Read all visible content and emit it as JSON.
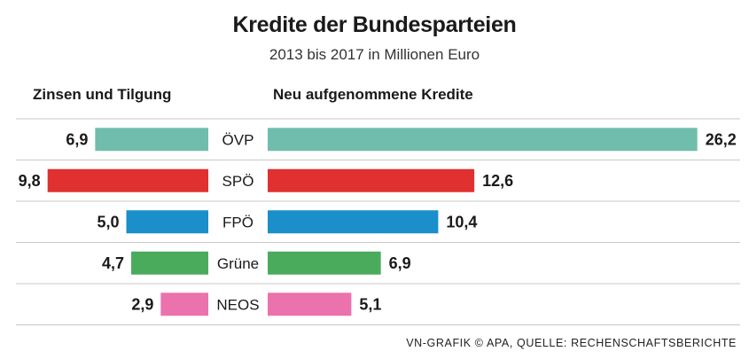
{
  "chart_data": {
    "type": "bar",
    "title": "Kredite der Bundesparteien",
    "subtitle": "2013 bis 2017 in Millionen Euro",
    "categories": [
      "ÖVP",
      "SPÖ",
      "FPÖ",
      "Grüne",
      "NEOS"
    ],
    "series": [
      {
        "name": "Zinsen und Tilgung",
        "values": [
          6.9,
          9.8,
          5.0,
          4.7,
          2.9
        ],
        "labels": [
          "6,9",
          "9,8",
          "5,0",
          "4,7",
          "2,9"
        ]
      },
      {
        "name": "Neu aufgenommene Kredite",
        "values": [
          26.2,
          12.6,
          10.4,
          6.9,
          5.1
        ],
        "labels": [
          "26,2",
          "12,6",
          "10,4",
          "6,9",
          "5,1"
        ]
      }
    ],
    "colors": [
      "#70bdad",
      "#e03030",
      "#1a8fc9",
      "#4aab5c",
      "#ec72ad"
    ],
    "source": "VN-GRAFIK © APA, QUELLE: RECHENSCHAFTSBERICHTE"
  }
}
